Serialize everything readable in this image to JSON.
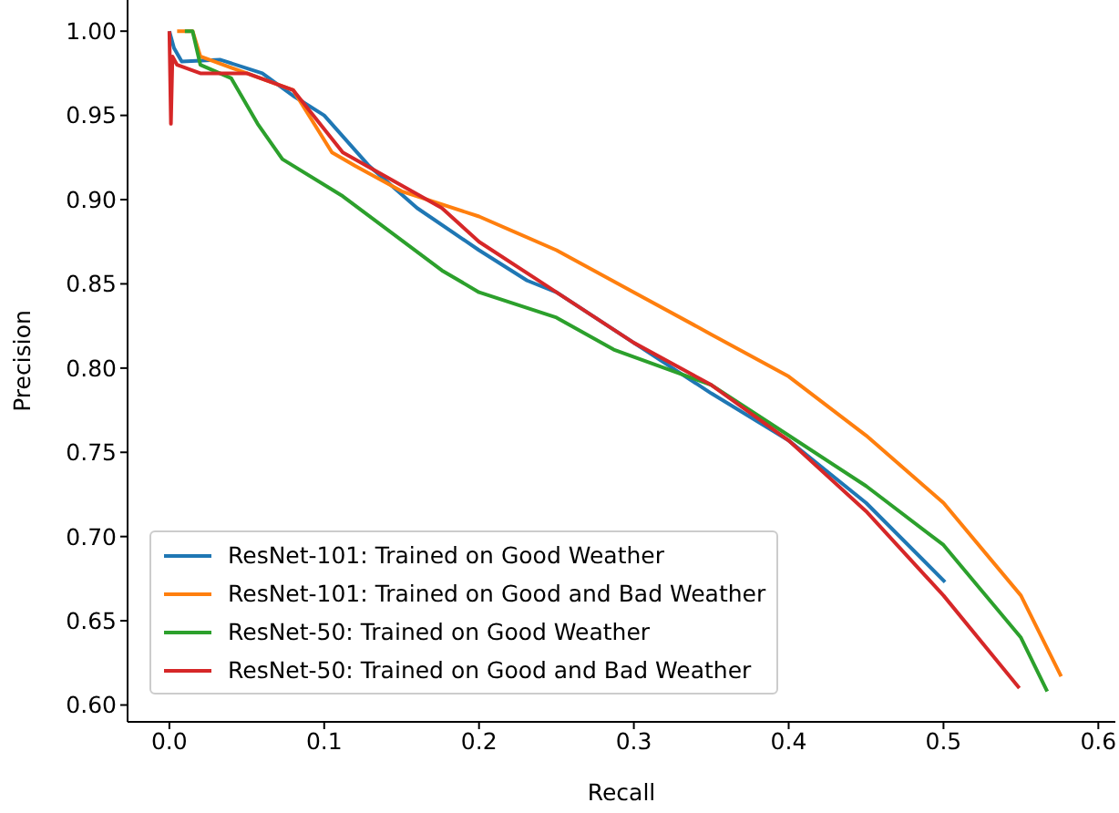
{
  "chart_data": {
    "type": "line",
    "xlabel": "Recall",
    "ylabel": "Precision",
    "xlim": [
      -0.027,
      0.611
    ],
    "ylim": [
      0.59,
      1.0185
    ],
    "xticks": [
      {
        "value": 0,
        "label": "0.0"
      },
      {
        "value": 0.1,
        "label": "0.1"
      },
      {
        "value": 0.2,
        "label": "0.2"
      },
      {
        "value": 0.3,
        "label": "0.3"
      },
      {
        "value": 0.4,
        "label": "0.4"
      },
      {
        "value": 0.5,
        "label": "0.5"
      },
      {
        "value": 0.6,
        "label": "0.6"
      }
    ],
    "yticks": [
      {
        "value": 0.6,
        "label": "0.60"
      },
      {
        "value": 0.65,
        "label": "0.65"
      },
      {
        "value": 0.7,
        "label": "0.70"
      },
      {
        "value": 0.75,
        "label": "0.75"
      },
      {
        "value": 0.8,
        "label": "0.80"
      },
      {
        "value": 0.85,
        "label": "0.85"
      },
      {
        "value": 0.9,
        "label": "0.90"
      },
      {
        "value": 0.95,
        "label": "0.95"
      },
      {
        "value": 1.0,
        "label": "1.00"
      }
    ],
    "grid": false,
    "legend": "bottom left",
    "marker": "none",
    "line_style": "solid",
    "series": [
      {
        "name": "ResNet-101: Trained on Good Weather",
        "color": "#1f77b4",
        "x": [
          0,
          0.003,
          0.008,
          0.033,
          0.06,
          0.081,
          0.1,
          0.129,
          0.16,
          0.2,
          0.231,
          0.25,
          0.3,
          0.35,
          0.4,
          0.45,
          0.501
        ],
        "values": [
          1.0,
          0.99,
          0.982,
          0.983,
          0.975,
          0.961,
          0.95,
          0.92,
          0.895,
          0.87,
          0.852,
          0.845,
          0.815,
          0.785,
          0.757,
          0.72,
          0.673
        ]
      },
      {
        "name": "ResNet-101: Trained on Good and Bad Weather",
        "color": "#ff7f0e",
        "x": [
          0.005,
          0.015,
          0.02,
          0.05,
          0.08,
          0.105,
          0.12,
          0.15,
          0.2,
          0.25,
          0.3,
          0.35,
          0.4,
          0.45,
          0.5,
          0.55,
          0.576
        ],
        "values": [
          1.0,
          1.0,
          0.985,
          0.975,
          0.965,
          0.928,
          0.92,
          0.905,
          0.89,
          0.87,
          0.845,
          0.82,
          0.795,
          0.76,
          0.72,
          0.665,
          0.617
        ]
      },
      {
        "name": "ResNet-50: Trained on Good Weather",
        "color": "#2ca02c",
        "x": [
          0.01,
          0.015,
          0.02,
          0.04,
          0.057,
          0.073,
          0.112,
          0.176,
          0.2,
          0.25,
          0.287,
          0.35,
          0.4,
          0.45,
          0.5,
          0.55,
          0.567
        ],
        "values": [
          1.0,
          1.0,
          0.98,
          0.972,
          0.945,
          0.924,
          0.902,
          0.858,
          0.845,
          0.83,
          0.811,
          0.79,
          0.76,
          0.73,
          0.695,
          0.64,
          0.608
        ]
      },
      {
        "name": "ResNet-50: Trained on Good and Bad Weather",
        "color": "#d62728",
        "x": [
          0,
          0.001,
          0.002,
          0.005,
          0.02,
          0.05,
          0.08,
          0.112,
          0.176,
          0.2,
          0.25,
          0.3,
          0.35,
          0.4,
          0.45,
          0.5,
          0.549
        ],
        "values": [
          1.0,
          0.945,
          0.985,
          0.98,
          0.975,
          0.975,
          0.965,
          0.928,
          0.895,
          0.875,
          0.845,
          0.815,
          0.79,
          0.757,
          0.715,
          0.665,
          0.61
        ]
      }
    ]
  }
}
